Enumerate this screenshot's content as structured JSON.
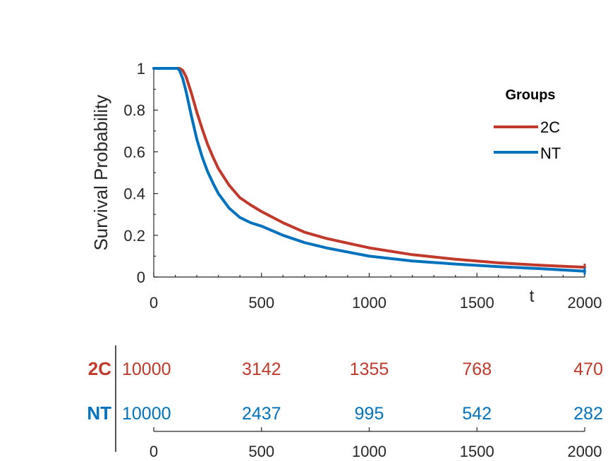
{
  "chart_data": {
    "type": "line",
    "title": "",
    "xlabel": "t",
    "ylabel": "Survival Probability",
    "xlim": [
      0,
      2000
    ],
    "ylim": [
      0,
      1
    ],
    "xticks": [
      "0",
      "500",
      "1000",
      "1500",
      "2000"
    ],
    "yticks": [
      "0",
      "0.2",
      "0.4",
      "0.6",
      "0.8",
      "1"
    ],
    "legend": {
      "title": "Groups",
      "position": "top-right"
    },
    "series": [
      {
        "name": "2C",
        "color": "#c0392b",
        "x": [
          0,
          120,
          135,
          150,
          175,
          200,
          225,
          250,
          275,
          300,
          350,
          400,
          450,
          500,
          600,
          700,
          800,
          1000,
          1200,
          1400,
          1600,
          1800,
          2000
        ],
        "y": [
          1.0,
          1.0,
          0.99,
          0.96,
          0.88,
          0.79,
          0.71,
          0.635,
          0.575,
          0.52,
          0.44,
          0.38,
          0.345,
          0.314,
          0.26,
          0.215,
          0.185,
          0.14,
          0.107,
          0.085,
          0.068,
          0.056,
          0.047
        ]
      },
      {
        "name": "NT",
        "color": "#0072bd",
        "x": [
          0,
          110,
          120,
          135,
          150,
          175,
          200,
          225,
          250,
          275,
          300,
          350,
          400,
          450,
          500,
          600,
          700,
          800,
          1000,
          1200,
          1400,
          1600,
          1800,
          2000
        ],
        "y": [
          1.0,
          1.0,
          0.99,
          0.95,
          0.89,
          0.77,
          0.66,
          0.575,
          0.505,
          0.45,
          0.4,
          0.33,
          0.285,
          0.26,
          0.244,
          0.2,
          0.165,
          0.14,
          0.1,
          0.077,
          0.062,
          0.05,
          0.04,
          0.028
        ]
      }
    ],
    "risk_table": {
      "x": [
        0,
        500,
        1000,
        1500,
        2000
      ],
      "x_tick_labels": [
        "0",
        "500",
        "1000",
        "1500",
        "2000"
      ],
      "rows": [
        {
          "name": "2C",
          "color": "#c0392b",
          "values": [
            "10000",
            "3142",
            "1355",
            "768",
            "470"
          ]
        },
        {
          "name": "NT",
          "color": "#0072bd",
          "values": [
            "10000",
            "2437",
            "995",
            "542",
            "282"
          ]
        }
      ]
    }
  }
}
